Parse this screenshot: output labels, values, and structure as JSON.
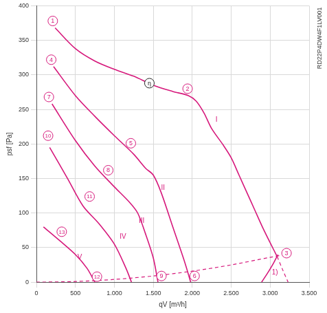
{
  "chart_data": {
    "type": "line",
    "x_label": "qV [m³/h]",
    "y_label": "psf [Pa]",
    "side_label": "RD22P4DW4F1LV001",
    "xlim": [
      0,
      3500
    ],
    "ylim": [
      0,
      400
    ],
    "xticks": [
      0,
      500,
      {
        "value": 1000,
        "label": "1.000"
      },
      {
        "value": 1500,
        "label": "1.500"
      },
      {
        "value": 2000,
        "label": "2.000"
      },
      {
        "value": 2500,
        "label": "2.500"
      },
      {
        "value": 3000,
        "label": "3.000"
      },
      {
        "value": 3500,
        "label": "3.500"
      }
    ],
    "yticks": [
      0,
      50,
      100,
      150,
      200,
      250,
      300,
      350,
      400
    ],
    "grid": true,
    "series": [
      {
        "name": "I",
        "color": "#d6187b",
        "line_style": "solid",
        "x": [
          240,
          500,
          750,
          1000,
          1250,
          1500,
          1750,
          1950,
          2050,
          2150,
          2250,
          2400,
          2500,
          2600,
          2700,
          2800,
          2900,
          3000,
          3090
        ],
        "values": [
          368,
          338,
          320,
          308,
          298,
          285,
          276,
          270,
          262,
          245,
          222,
          198,
          180,
          155,
          130,
          105,
          80,
          57,
          37
        ]
      },
      {
        "color": "#d6187b",
        "line_style": "dashed",
        "x": [
          3090,
          3160,
          3230
        ],
        "values": [
          37,
          18,
          0
        ]
      },
      {
        "name": "II",
        "color": "#d6187b",
        "line_style": "solid",
        "x": [
          220,
          500,
          750,
          1000,
          1250,
          1400,
          1500,
          1600,
          1750,
          1900,
          1980
        ],
        "values": [
          312,
          270,
          240,
          212,
          185,
          165,
          155,
          130,
          80,
          30,
          0
        ]
      },
      {
        "name": "III",
        "color": "#d6187b",
        "line_style": "solid",
        "x": [
          200,
          500,
          750,
          1000,
          1200,
          1300,
          1400,
          1500,
          1560
        ],
        "values": [
          258,
          205,
          168,
          138,
          115,
          100,
          70,
          35,
          0
        ]
      },
      {
        "name": "IV",
        "color": "#d6187b",
        "line_style": "solid",
        "x": [
          170,
          400,
          600,
          800,
          1000,
          1150,
          1220
        ],
        "values": [
          195,
          150,
          110,
          85,
          55,
          20,
          0
        ]
      },
      {
        "name": "V",
        "color": "#d6187b",
        "line_style": "solid",
        "x": [
          90,
          300,
          500,
          650,
          750
        ],
        "values": [
          80,
          60,
          40,
          20,
          0
        ]
      },
      {
        "color": "#d6187b",
        "line_style": "dashed",
        "x": [
          0,
          500,
          1000,
          1500,
          2000,
          2500,
          3000,
          3150
        ],
        "values": [
          0,
          1,
          4,
          9,
          16,
          25,
          36,
          39
        ]
      },
      {
        "name": "1)",
        "color": "#d6187b",
        "line_style": "solid",
        "x": [
          2890,
          2960,
          3040,
          3100
        ],
        "values": [
          0,
          12,
          27,
          40
        ]
      }
    ],
    "annotations": [
      {
        "text": "1",
        "x": 210,
        "y": 378,
        "marker": "circle",
        "color": "#d6187b"
      },
      {
        "text": "2",
        "x": 1940,
        "y": 280,
        "marker": "circle",
        "color": "#d6187b"
      },
      {
        "text": "3",
        "x": 3210,
        "y": 42,
        "marker": "circle",
        "color": "#d6187b"
      },
      {
        "text": "4",
        "x": 190,
        "y": 322,
        "marker": "circle",
        "color": "#d6187b"
      },
      {
        "text": "5",
        "x": 1212,
        "y": 201,
        "marker": "circle",
        "color": "#d6187b"
      },
      {
        "text": "6",
        "x": 2030,
        "y": 9,
        "marker": "circle",
        "color": "#d6187b"
      },
      {
        "text": "7",
        "x": 160,
        "y": 268,
        "marker": "circle",
        "color": "#d6187b"
      },
      {
        "text": "8",
        "x": 922,
        "y": 162,
        "marker": "circle",
        "color": "#d6187b"
      },
      {
        "text": "9",
        "x": 1605,
        "y": 9,
        "marker": "circle",
        "color": "#d6187b"
      },
      {
        "text": "10",
        "x": 150,
        "y": 212,
        "marker": "circle",
        "color": "#d6187b"
      },
      {
        "text": "11",
        "x": 683,
        "y": 124,
        "marker": "circle",
        "color": "#d6187b"
      },
      {
        "text": "12",
        "x": 777,
        "y": 8,
        "marker": "circle",
        "color": "#d6187b"
      },
      {
        "text": "13",
        "x": 325,
        "y": 73,
        "marker": "circle",
        "color": "#d6187b"
      },
      {
        "text": "η",
        "x": 1450,
        "y": 288,
        "marker": "circle",
        "color": "#222222"
      },
      {
        "text": "I",
        "x": 2310,
        "y": 235,
        "color": "#d6187b"
      },
      {
        "text": "II",
        "x": 1625,
        "y": 137,
        "color": "#d6187b"
      },
      {
        "text": "III",
        "x": 1350,
        "y": 89,
        "color": "#d6187b"
      },
      {
        "text": "IV",
        "x": 1110,
        "y": 66,
        "color": "#d6187b"
      },
      {
        "text": "V",
        "x": 555,
        "y": 36,
        "color": "#d6187b"
      },
      {
        "text": "1)",
        "x": 3060,
        "y": 14,
        "color": "#d6187b"
      }
    ]
  }
}
